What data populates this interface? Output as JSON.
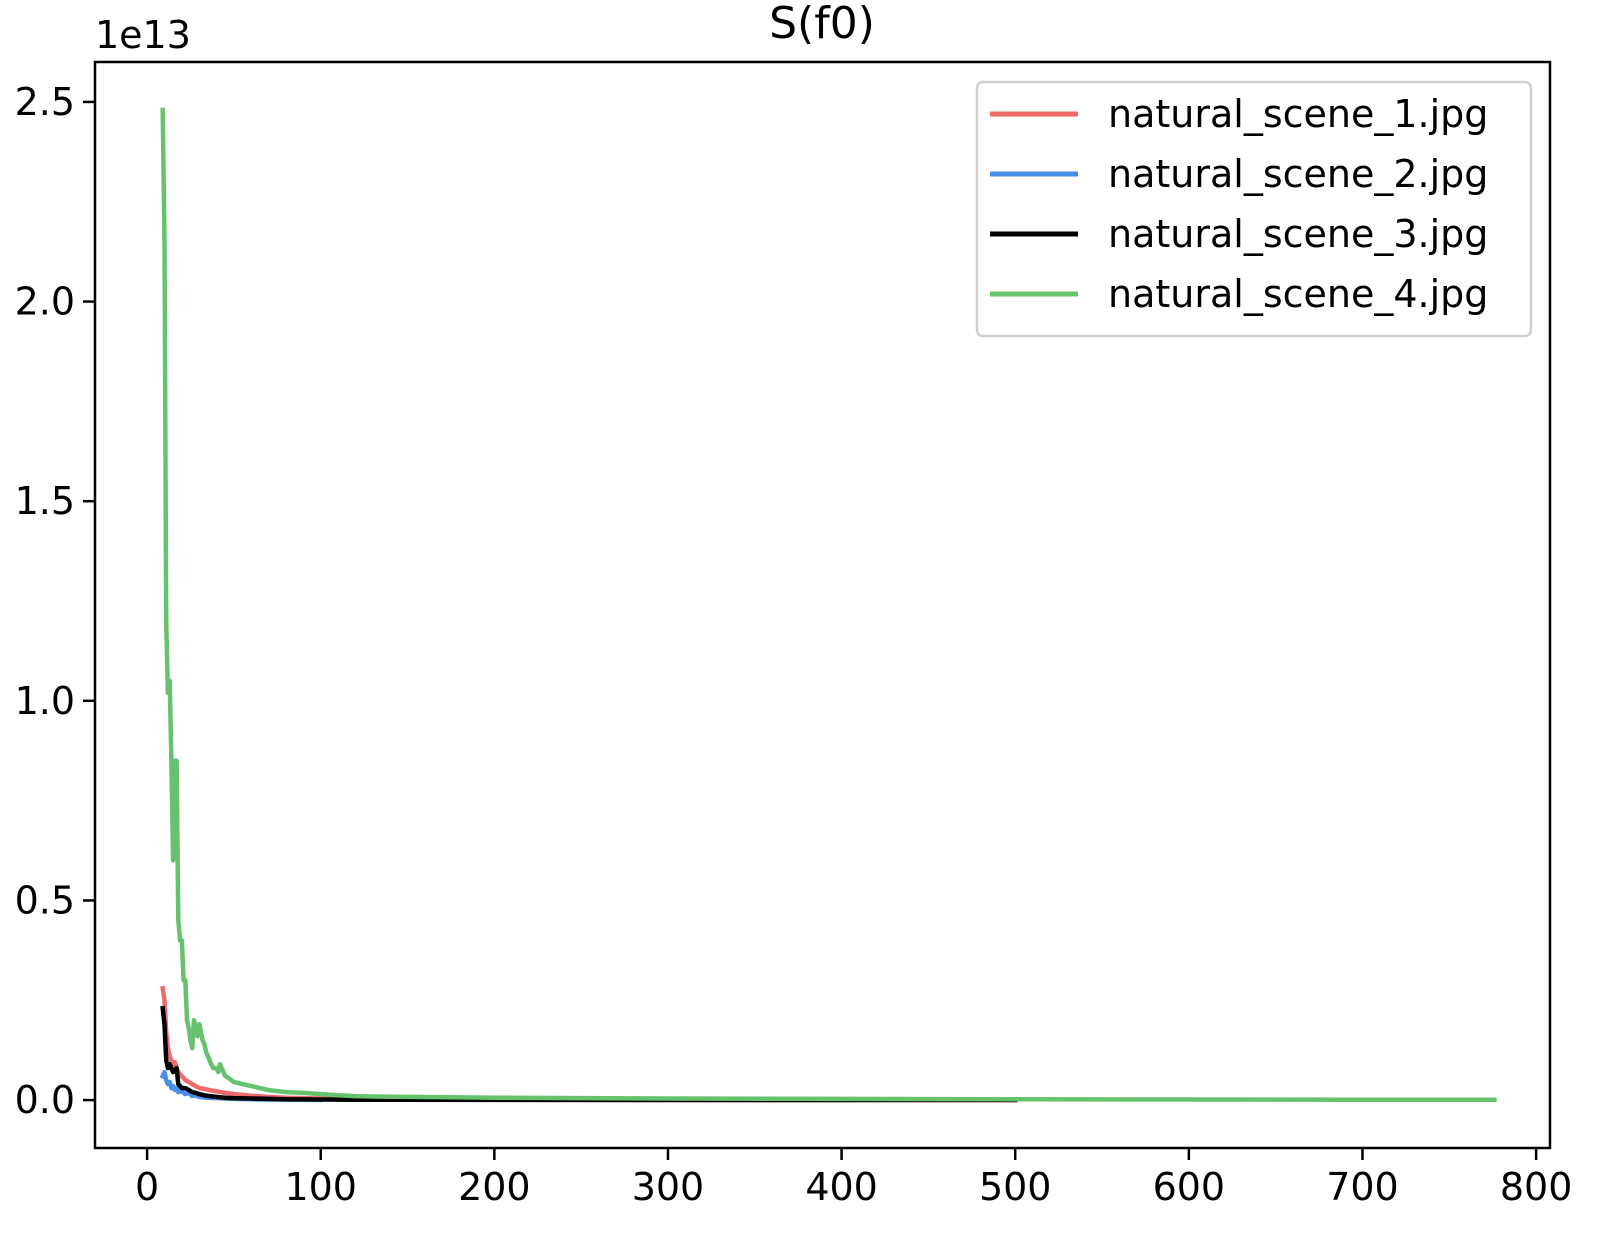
{
  "chart_data": {
    "type": "line",
    "title": "S(f0)",
    "xlabel": "",
    "ylabel": "",
    "y_offset_label": "1e13",
    "xlim": [
      -30,
      808
    ],
    "ylim": [
      -0.12,
      2.6
    ],
    "xticks": [
      0,
      100,
      200,
      300,
      400,
      500,
      600,
      700,
      800
    ],
    "xtick_labels": [
      "0",
      "100",
      "200",
      "300",
      "400",
      "500",
      "600",
      "700",
      "800"
    ],
    "yticks": [
      0.0,
      0.5,
      1.0,
      1.5,
      2.0,
      2.5
    ],
    "ytick_labels": [
      "0.0",
      "0.5",
      "1.0",
      "1.5",
      "2.0",
      "2.5"
    ],
    "grid": false,
    "legend_position": "top-right",
    "series": [
      {
        "name": "natural_scene_1.jpg",
        "color": "#ef6b6b",
        "x": [
          9,
          10,
          11,
          12,
          13,
          14,
          15,
          16,
          17,
          18,
          20,
          22,
          24,
          26,
          28,
          30,
          33,
          36,
          40,
          45,
          50,
          60,
          70,
          80,
          100,
          120,
          150,
          200,
          300,
          400,
          500
        ],
        "y": [
          0.28,
          0.25,
          0.17,
          0.13,
          0.11,
          0.1,
          0.09,
          0.095,
          0.08,
          0.07,
          0.06,
          0.05,
          0.045,
          0.04,
          0.035,
          0.03,
          0.028,
          0.025,
          0.022,
          0.018,
          0.015,
          0.011,
          0.008,
          0.006,
          0.004,
          0.003,
          0.002,
          0.001,
          0.0005,
          0.0003,
          0.0002
        ]
      },
      {
        "name": "natural_scene_2.jpg",
        "color": "#4a8fe7",
        "x": [
          9,
          10,
          11,
          12,
          13,
          14,
          15,
          16,
          17,
          18,
          20,
          22,
          24,
          26,
          28,
          30,
          35,
          40,
          50,
          60,
          80,
          100
        ],
        "y": [
          0.06,
          0.07,
          0.05,
          0.04,
          0.045,
          0.03,
          0.035,
          0.025,
          0.03,
          0.02,
          0.022,
          0.015,
          0.018,
          0.01,
          0.012,
          0.008,
          0.006,
          0.005,
          0.003,
          0.002,
          0.001,
          0.0005
        ]
      },
      {
        "name": "natural_scene_3.jpg",
        "color": "#000000",
        "x": [
          9,
          10,
          11,
          12,
          13,
          14,
          15,
          16,
          17,
          18,
          19,
          20,
          22,
          24,
          26,
          28,
          30,
          33,
          36,
          40,
          45,
          50,
          60,
          70,
          80,
          100,
          120,
          150,
          200,
          300,
          400,
          500
        ],
        "y": [
          0.23,
          0.19,
          0.1,
          0.08,
          0.09,
          0.08,
          0.07,
          0.075,
          0.08,
          0.04,
          0.035,
          0.03,
          0.03,
          0.025,
          0.02,
          0.018,
          0.015,
          0.012,
          0.01,
          0.008,
          0.006,
          0.005,
          0.004,
          0.003,
          0.002,
          0.0015,
          0.001,
          0.0008,
          0.0005,
          0.0003,
          0.0002,
          0.0001
        ]
      },
      {
        "name": "natural_scene_4.jpg",
        "color": "#66c26e",
        "x": [
          9,
          10,
          11,
          12,
          13,
          14,
          15,
          16,
          17,
          18,
          19,
          20,
          21,
          22,
          23,
          24,
          25,
          26,
          27,
          28,
          29,
          30,
          31,
          32,
          33,
          34,
          35,
          36,
          37,
          38,
          39,
          40,
          41,
          42,
          43,
          44,
          45,
          47,
          50,
          55,
          60,
          65,
          70,
          80,
          90,
          100,
          110,
          120,
          130,
          150,
          175,
          200,
          250,
          300,
          400,
          500,
          600,
          700,
          776
        ],
        "y": [
          2.48,
          2.15,
          1.2,
          1.02,
          1.05,
          0.85,
          0.6,
          0.85,
          0.85,
          0.45,
          0.4,
          0.4,
          0.3,
          0.3,
          0.2,
          0.18,
          0.15,
          0.13,
          0.2,
          0.18,
          0.16,
          0.19,
          0.17,
          0.15,
          0.14,
          0.12,
          0.11,
          0.1,
          0.09,
          0.08,
          0.08,
          0.08,
          0.07,
          0.09,
          0.08,
          0.07,
          0.06,
          0.055,
          0.045,
          0.04,
          0.035,
          0.03,
          0.025,
          0.02,
          0.018,
          0.015,
          0.012,
          0.01,
          0.009,
          0.008,
          0.007,
          0.006,
          0.005,
          0.004,
          0.003,
          0.002,
          0.0015,
          0.001,
          0.0008
        ]
      }
    ]
  }
}
